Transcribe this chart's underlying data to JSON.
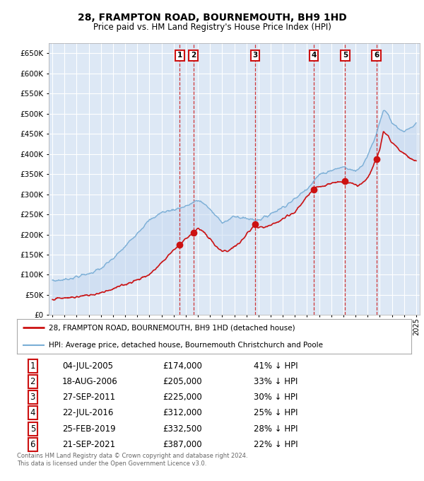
{
  "title": "28, FRAMPTON ROAD, BOURNEMOUTH, BH9 1HD",
  "subtitle": "Price paid vs. HM Land Registry's House Price Index (HPI)",
  "ylim": [
    0,
    675000
  ],
  "yticks": [
    0,
    50000,
    100000,
    150000,
    200000,
    250000,
    300000,
    350000,
    400000,
    450000,
    500000,
    550000,
    600000,
    650000
  ],
  "xlim_start": 1994.7,
  "xlim_end": 2025.3,
  "background_color": "#ffffff",
  "chart_bg_color": "#dde8f5",
  "grid_color": "#ffffff",
  "purchases": [
    {
      "num": 1,
      "date": "04-JUL-2005",
      "price": 174000,
      "year": 2005.5,
      "pct": "41%",
      "label": "1"
    },
    {
      "num": 2,
      "date": "18-AUG-2006",
      "price": 205000,
      "year": 2006.62,
      "pct": "33%",
      "label": "2"
    },
    {
      "num": 3,
      "date": "27-SEP-2011",
      "price": 225000,
      "year": 2011.73,
      "pct": "30%",
      "label": "3"
    },
    {
      "num": 4,
      "date": "22-JUL-2016",
      "price": 312000,
      "year": 2016.55,
      "pct": "25%",
      "label": "4"
    },
    {
      "num": 5,
      "date": "25-FEB-2019",
      "price": 332500,
      "year": 2019.15,
      "pct": "28%",
      "label": "5"
    },
    {
      "num": 6,
      "date": "21-SEP-2021",
      "price": 387000,
      "year": 2021.72,
      "pct": "22%",
      "label": "6"
    }
  ],
  "hpi_line_color": "#7aaed6",
  "hpi_fill_color": "#c5d8f0",
  "price_line_color": "#cc1111",
  "dashed_line_color": "#cc2222",
  "legend_house_label": "28, FRAMPTON ROAD, BOURNEMOUTH, BH9 1HD (detached house)",
  "legend_hpi_label": "HPI: Average price, detached house, Bournemouth Christchurch and Poole",
  "footer1": "Contains HM Land Registry data © Crown copyright and database right 2024.",
  "footer2": "This data is licensed under the Open Government Licence v3.0.",
  "table_rows": [
    [
      "1",
      "04-JUL-2005",
      "£174,000",
      "41% ↓ HPI"
    ],
    [
      "2",
      "18-AUG-2006",
      "£205,000",
      "33% ↓ HPI"
    ],
    [
      "3",
      "27-SEP-2011",
      "£225,000",
      "30% ↓ HPI"
    ],
    [
      "4",
      "22-JUL-2016",
      "£312,000",
      "25% ↓ HPI"
    ],
    [
      "5",
      "25-FEB-2019",
      "£332,500",
      "28% ↓ HPI"
    ],
    [
      "6",
      "21-SEP-2021",
      "£387,000",
      "22% ↓ HPI"
    ]
  ]
}
